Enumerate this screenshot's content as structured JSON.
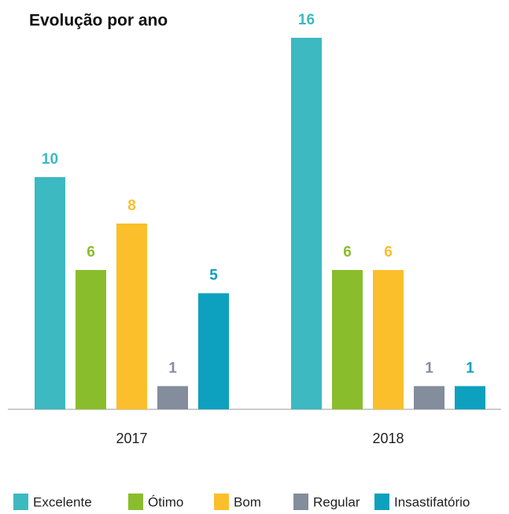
{
  "chart_data": {
    "type": "bar",
    "title": "Evolução por ano",
    "categories": [
      "2017",
      "2018"
    ],
    "series": [
      {
        "name": "Excelente",
        "color": "#3cb9c1",
        "values": [
          10,
          16
        ]
      },
      {
        "name": "Ótimo",
        "color": "#8abd2b",
        "values": [
          6,
          6
        ]
      },
      {
        "name": "Bom",
        "color": "#fbbf2b",
        "values": [
          8,
          6
        ]
      },
      {
        "name": "Regular",
        "color": "#838d9b",
        "values": [
          1,
          1
        ]
      },
      {
        "name": "Insastifatório",
        "color": "#0ea0bf",
        "values": [
          5,
          1
        ]
      }
    ]
  }
}
